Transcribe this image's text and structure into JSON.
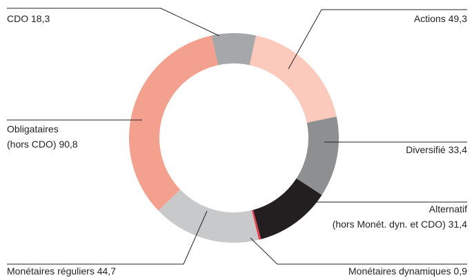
{
  "chart_data": {
    "type": "donut",
    "categories": [
      "CDO",
      "Actions",
      "Diversifié",
      "Alternatif (hors Monét. dyn. et CDO)",
      "Monétaires dynamiques",
      "Monétaires réguliers",
      "Obligataires (hors CDO)"
    ],
    "values": [
      18.3,
      49.3,
      33.4,
      31.4,
      0.9,
      44.7,
      90.8
    ],
    "value_labels": [
      "18,3",
      "49,3",
      "33,4",
      "31,4",
      "0,9",
      "44,7",
      "90,8"
    ],
    "colors": [
      "#a6a7a9",
      "#fcc9bd",
      "#8e8f91",
      "#231f20",
      "#e8414f",
      "#c8c9cb",
      "#f4a08e"
    ]
  }
}
